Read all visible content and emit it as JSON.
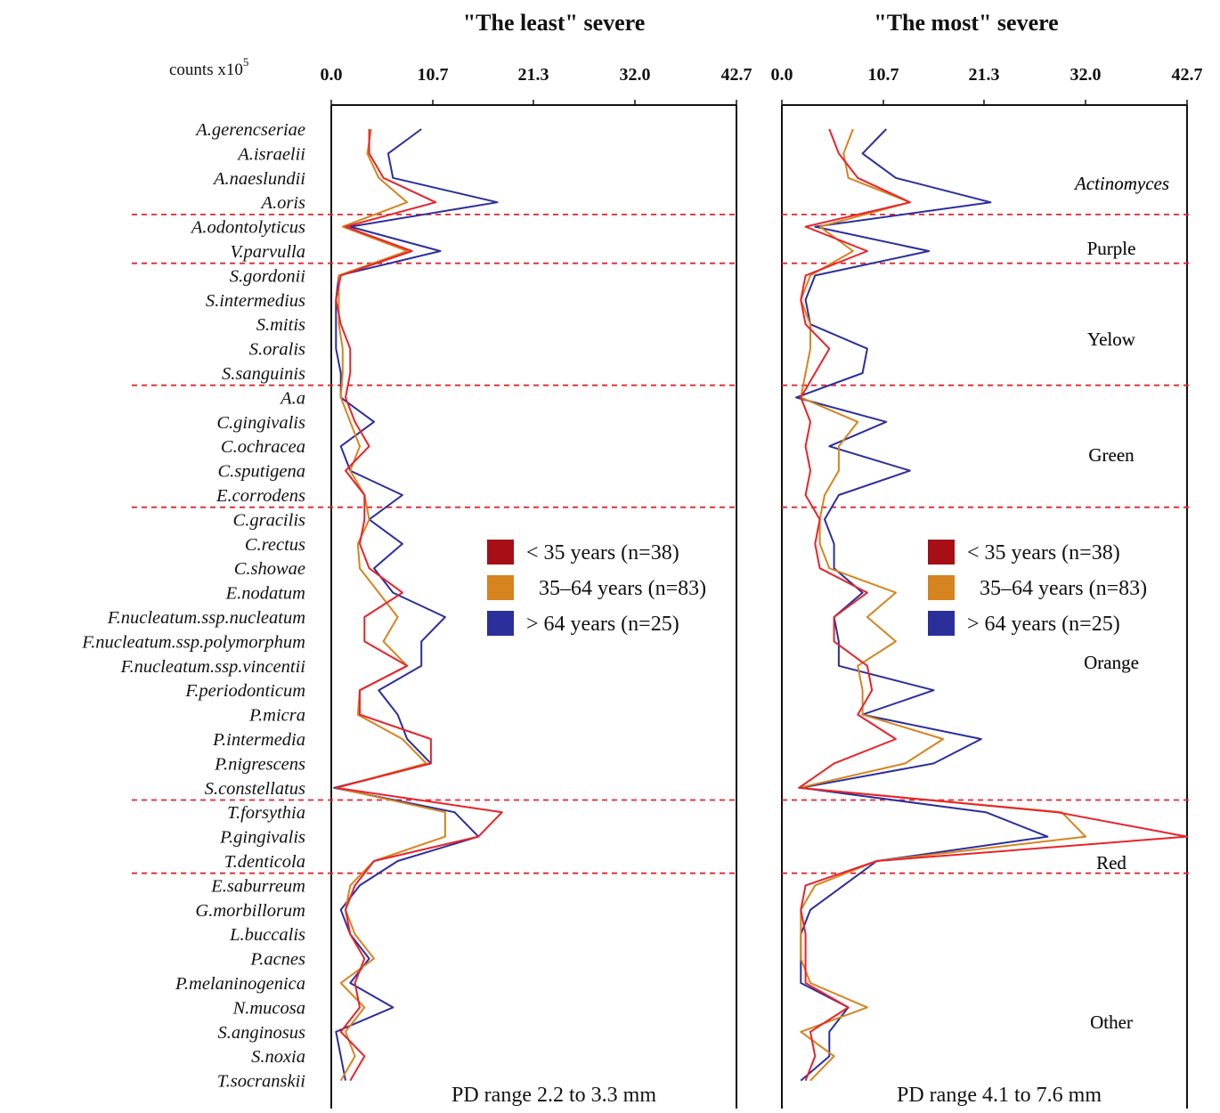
{
  "axis_unit": {
    "label": "counts x10",
    "exponent": "5"
  },
  "legend": [
    {
      "label": "< 35 years (n=38)",
      "color": "#a50f15"
    },
    {
      "label": "35–64 years (n=83)",
      "color": "#d6841f"
    },
    {
      "label": "> 64 years (n=25)",
      "color": "#2b2f9c"
    }
  ],
  "chart_data": [
    {
      "type": "line",
      "orientation": "horizontal-profile",
      "title": "\"The least\" severe",
      "note": "PD range 2.2 to 3.3 mm",
      "xlabel": "counts x10^5",
      "xlim": [
        0,
        42.7
      ],
      "xticks": [
        "0.0",
        "10.7",
        "21.3",
        "32.0",
        "42.7"
      ],
      "categories": [
        "A.gerencseriae",
        "A.israelii",
        "A.naeslundii",
        "A.oris",
        "A.odontolyticus",
        "V.parvulla",
        "S.gordonii",
        "S.intermedius",
        "S.mitis",
        "S.oralis",
        "S.sanguinis",
        "A.a",
        "C.gingivalis",
        "C.ochracea",
        "C.sputigena",
        "E.corrodens",
        "C.gracilis",
        "C.rectus",
        "C.showae",
        "E.nodatum",
        "F.nucleatum.ssp.nucleatum",
        "F.nucleatum.ssp.polymorphum",
        "F.nucleatum.ssp.vincentii",
        "F.periodonticum",
        "P.micra",
        "P.intermedia",
        "P.nigrescens",
        "S.constellatus",
        "T.forsythia",
        "P.gingivalis",
        "T.denticola",
        "E.saburreum",
        "G.morbillorum",
        "L.buccalis",
        "P.acnes",
        "P.melaninogenica",
        "N.mucosa",
        "S.anginosus",
        "S.noxia",
        "T.socranskii"
      ],
      "series": [
        {
          "name": "< 35 years (n=38)",
          "color": "#e8232b",
          "values": [
            4.0,
            4.0,
            5.5,
            11.0,
            1.5,
            8.5,
            1.0,
            0.5,
            1.0,
            2.0,
            2.0,
            1.5,
            2.5,
            4.0,
            1.5,
            3.5,
            3.5,
            3.0,
            4.0,
            7.5,
            3.5,
            3.5,
            8.0,
            3.0,
            3.0,
            10.5,
            10.5,
            0.5,
            18.0,
            15.5,
            4.5,
            2.5,
            1.5,
            2.0,
            3.5,
            2.5,
            3.0,
            1.0,
            3.5,
            2.0
          ]
        },
        {
          "name": "35–64 years (n=83)",
          "color": "#d6841f",
          "values": [
            4.2,
            3.8,
            5.0,
            8.0,
            1.2,
            8.0,
            0.8,
            0.8,
            0.8,
            1.2,
            1.2,
            1.0,
            2.0,
            3.0,
            2.0,
            3.5,
            4.0,
            2.8,
            3.0,
            5.0,
            7.0,
            5.5,
            8.0,
            3.0,
            2.8,
            7.5,
            10.0,
            0.5,
            12.0,
            12.0,
            4.5,
            2.0,
            1.5,
            2.5,
            4.5,
            1.0,
            3.5,
            1.5,
            2.5,
            1.0
          ]
        },
        {
          "name": "> 64 years (n=25)",
          "color": "#2b2f9c",
          "values": [
            9.5,
            6.0,
            6.5,
            17.5,
            2.0,
            11.5,
            0.8,
            0.5,
            0.5,
            0.5,
            1.0,
            1.0,
            4.5,
            1.0,
            2.0,
            7.5,
            4.0,
            7.5,
            4.5,
            6.5,
            12.0,
            9.5,
            9.5,
            5.0,
            7.0,
            8.0,
            10.5,
            0.3,
            13.0,
            15.5,
            7.0,
            3.0,
            1.0,
            2.0,
            4.0,
            2.0,
            6.5,
            0.5,
            1.0,
            1.5
          ]
        }
      ],
      "groups": [
        {
          "label": "Actinomyces",
          "italic": true,
          "from": 0,
          "to": 3
        },
        {
          "label": "Purple",
          "from": 4,
          "to": 5
        },
        {
          "label": "Yelow",
          "from": 6,
          "to": 10
        },
        {
          "label": "Green",
          "from": 11,
          "to": 15
        },
        {
          "label": "Orange",
          "from": 16,
          "to": 27
        },
        {
          "label": "Red",
          "from": 28,
          "to": 30
        },
        {
          "label": "Other",
          "from": 31,
          "to": 39
        }
      ]
    },
    {
      "type": "line",
      "orientation": "horizontal-profile",
      "title": "\"The most\" severe",
      "note": "PD range 4.1 to 7.6 mm",
      "xlabel": "counts x10^5",
      "xlim": [
        0,
        42.7
      ],
      "xticks": [
        "0.0",
        "10.7",
        "21.3",
        "32.0",
        "42.7"
      ],
      "categories": [
        "A.gerencseriae",
        "A.israelii",
        "A.naeslundii",
        "A.oris",
        "A.odontolyticus",
        "V.parvulla",
        "S.gordonii",
        "S.intermedius",
        "S.mitis",
        "S.oralis",
        "S.sanguinis",
        "A.a",
        "C.gingivalis",
        "C.ochracea",
        "C.sputigena",
        "E.corrodens",
        "C.gracilis",
        "C.rectus",
        "C.showae",
        "E.nodatum",
        "F.nucleatum.ssp.nucleatum",
        "F.nucleatum.ssp.polymorphum",
        "F.nucleatum.ssp.vincentii",
        "F.periodonticum",
        "P.micra",
        "P.intermedia",
        "P.nigrescens",
        "S.constellatus",
        "T.forsythia",
        "P.gingivalis",
        "T.denticola",
        "E.saburreum",
        "G.morbillorum",
        "L.buccalis",
        "P.acnes",
        "P.melaninogenica",
        "N.mucosa",
        "S.anginosus",
        "S.noxia",
        "T.socranskii"
      ],
      "series": [
        {
          "name": "< 35 years (n=38)",
          "color": "#e8232b",
          "values": [
            5.0,
            6.0,
            8.0,
            13.5,
            2.5,
            9.0,
            2.5,
            2.0,
            2.5,
            5.0,
            3.5,
            2.0,
            3.0,
            2.5,
            3.0,
            2.5,
            4.0,
            3.5,
            4.0,
            9.0,
            5.5,
            5.5,
            9.0,
            9.5,
            8.0,
            12.0,
            5.5,
            1.8,
            29.0,
            42.7,
            10.0,
            2.5,
            2.0,
            2.5,
            2.5,
            2.5,
            7.0,
            3.0,
            3.5,
            2.5
          ]
        },
        {
          "name": "35–64 years (n=83)",
          "color": "#d6841f",
          "values": [
            7.5,
            6.5,
            7.0,
            13.5,
            4.0,
            7.5,
            3.0,
            2.0,
            3.0,
            3.0,
            2.5,
            2.0,
            8.0,
            6.0,
            6.0,
            4.5,
            4.0,
            4.0,
            5.0,
            12.0,
            9.0,
            12.0,
            8.0,
            8.5,
            8.5,
            17.0,
            13.0,
            1.8,
            29.5,
            32.0,
            10.0,
            3.5,
            2.0,
            2.0,
            2.0,
            3.0,
            9.0,
            2.0,
            5.5,
            3.0
          ]
        },
        {
          "name": "> 64 years (n=25)",
          "color": "#2b2f9c",
          "values": [
            11.0,
            8.5,
            12.0,
            22.0,
            3.5,
            15.5,
            3.5,
            2.5,
            3.0,
            9.0,
            8.5,
            1.5,
            11.0,
            5.0,
            13.5,
            6.0,
            4.5,
            5.5,
            5.5,
            8.5,
            5.5,
            6.0,
            6.0,
            16.0,
            8.5,
            21.0,
            16.0,
            2.0,
            21.5,
            28.0,
            10.0,
            6.5,
            3.0,
            2.0,
            2.0,
            2.0,
            7.0,
            5.0,
            5.0,
            2.0
          ]
        }
      ],
      "groups": [
        {
          "label": "Actinomyces",
          "italic": true,
          "from": 0,
          "to": 3
        },
        {
          "label": "Purple",
          "from": 4,
          "to": 5
        },
        {
          "label": "Yelow",
          "from": 6,
          "to": 10
        },
        {
          "label": "Green",
          "from": 11,
          "to": 15
        },
        {
          "label": "Orange",
          "from": 16,
          "to": 27
        },
        {
          "label": "Red",
          "from": 28,
          "to": 30
        },
        {
          "label": "Other",
          "from": 31,
          "to": 39
        }
      ]
    }
  ]
}
